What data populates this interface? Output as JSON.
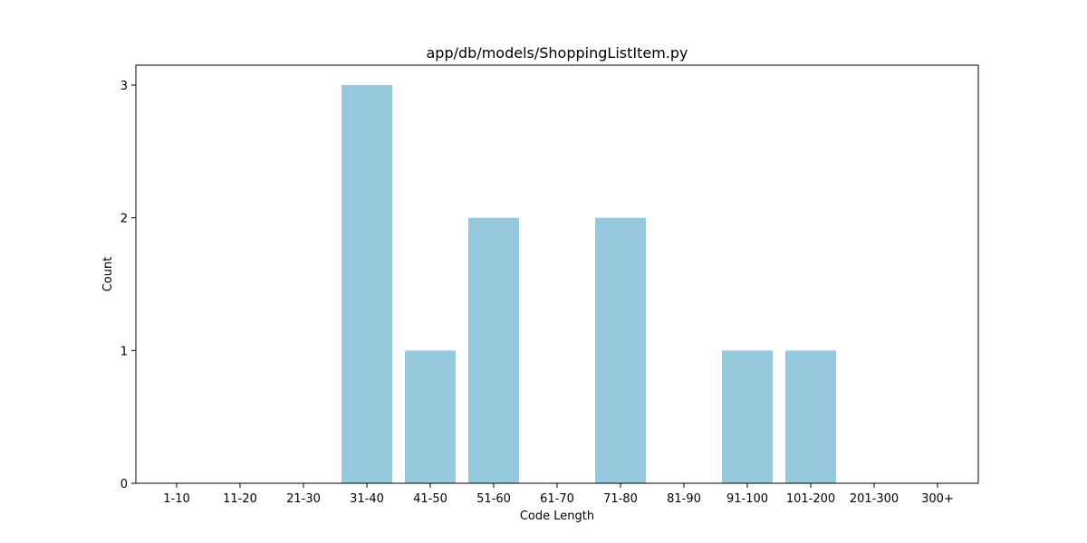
{
  "chart_data": {
    "type": "bar",
    "title": "app/db/models/ShoppingListItem.py",
    "xlabel": "Code Length",
    "ylabel": "Count",
    "categories": [
      "1-10",
      "11-20",
      "21-30",
      "31-40",
      "41-50",
      "51-60",
      "61-70",
      "71-80",
      "81-90",
      "91-100",
      "101-200",
      "201-300",
      "300+"
    ],
    "values": [
      0,
      0,
      0,
      3,
      1,
      2,
      0,
      2,
      0,
      1,
      1,
      0,
      0
    ],
    "ylim": [
      0,
      3.15
    ],
    "yticks": [
      0,
      1,
      2,
      3
    ],
    "grid": false,
    "bar_color": "#96c9de"
  }
}
